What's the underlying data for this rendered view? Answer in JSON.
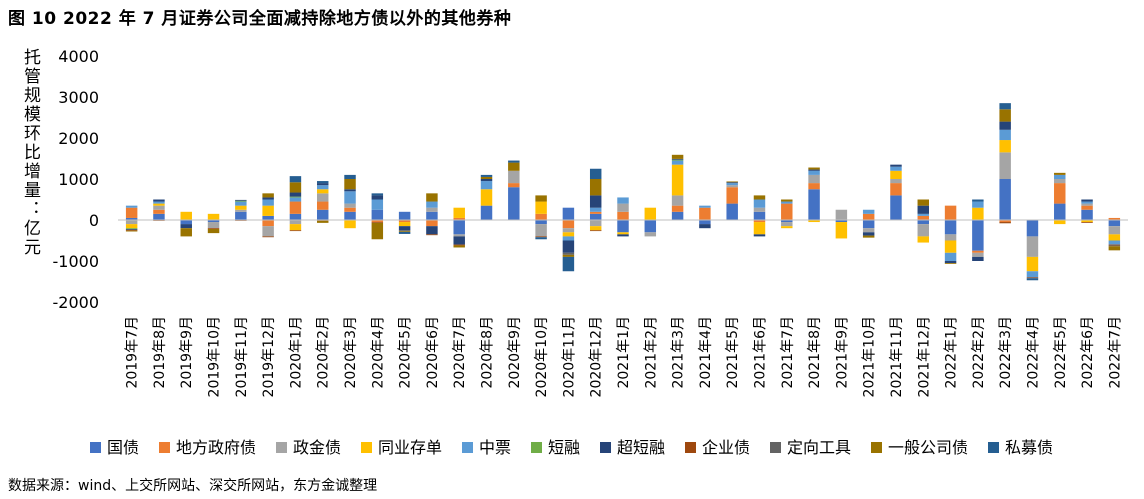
{
  "figure": {
    "title": "图 10  2022 年 7 月证券公司全面减持除地方债以外的其他券种",
    "source": "数据来源：wind、上交所网站、深交所网站，东方金诚整理"
  },
  "chart_data": {
    "type": "bar",
    "stacked": true,
    "ylabel": "托管规模环比增量：亿元",
    "ylim": [
      -2000,
      4000
    ],
    "yticks": [
      -2000,
      -1000,
      0,
      1000,
      2000,
      3000,
      4000
    ],
    "grid": false,
    "legend_position": "bottom",
    "categories": [
      "2019年7月",
      "2019年8月",
      "2019年9月",
      "2019年10月",
      "2019年11月",
      "2019年12月",
      "2020年1月",
      "2020年2月",
      "2020年3月",
      "2020年4月",
      "2020年5月",
      "2020年6月",
      "2020年7月",
      "2020年8月",
      "2020年9月",
      "2020年10月",
      "2020年11月",
      "2020年12月",
      "2021年1月",
      "2021年2月",
      "2021年3月",
      "2021年4月",
      "2021年5月",
      "2021年6月",
      "2021年7月",
      "2021年8月",
      "2021年9月",
      "2021年10月",
      "2021年11月",
      "2021年12月",
      "2022年1月",
      "2022年2月",
      "2022年3月",
      "2022年4月",
      "2022年5月",
      "2022年6月",
      "2022年7月"
    ],
    "series": [
      {
        "name": "国债",
        "color": "#4472C4",
        "values": [
          50,
          150,
          -100,
          -50,
          200,
          100,
          150,
          250,
          200,
          250,
          200,
          200,
          -350,
          350,
          800,
          -100,
          300,
          150,
          -300,
          -300,
          200,
          -100,
          400,
          200,
          -50,
          750,
          -50,
          -200,
          600,
          -100,
          -350,
          -750,
          1000,
          -400,
          400,
          250,
          -150
        ]
      },
      {
        "name": "地方政府债",
        "color": "#ED7D31",
        "values": [
          250,
          100,
          0,
          0,
          0,
          -150,
          300,
          200,
          100,
          -50,
          -50,
          -150,
          50,
          0,
          100,
          150,
          -200,
          50,
          200,
          0,
          150,
          300,
          400,
          -50,
          400,
          150,
          0,
          150,
          300,
          100,
          350,
          -50,
          -50,
          0,
          500,
          100,
          50
        ]
      },
      {
        "name": "政金债",
        "color": "#A5A5A5",
        "values": [
          -100,
          100,
          0,
          -150,
          50,
          -250,
          -100,
          200,
          100,
          0,
          0,
          100,
          -50,
          0,
          300,
          -300,
          -100,
          -150,
          200,
          -100,
          250,
          0,
          50,
          100,
          -100,
          200,
          250,
          -100,
          100,
          -300,
          -150,
          -100,
          650,
          -500,
          100,
          50,
          -200
        ]
      },
      {
        "name": "同业存单",
        "color": "#FFC000",
        "values": [
          -100,
          50,
          200,
          150,
          100,
          250,
          -150,
          100,
          -200,
          0,
          -100,
          0,
          250,
          400,
          0,
          300,
          -100,
          -100,
          -50,
          300,
          750,
          0,
          0,
          -300,
          -50,
          -50,
          -400,
          0,
          200,
          -150,
          -300,
          300,
          300,
          -350,
          -100,
          -50,
          -150
        ]
      },
      {
        "name": "中票",
        "color": "#5B9BD5",
        "values": [
          50,
          50,
          0,
          0,
          100,
          150,
          100,
          100,
          300,
          250,
          0,
          150,
          0,
          200,
          0,
          0,
          -100,
          100,
          150,
          0,
          100,
          50,
          50,
          200,
          50,
          100,
          0,
          100,
          100,
          50,
          -200,
          150,
          250,
          -150,
          100,
          50,
          -100
        ]
      },
      {
        "name": "短融",
        "color": "#70AD47",
        "values": [
          -20,
          0,
          0,
          0,
          20,
          0,
          20,
          0,
          0,
          0,
          0,
          0,
          0,
          0,
          0,
          0,
          0,
          0,
          0,
          0,
          20,
          0,
          0,
          0,
          0,
          0,
          0,
          0,
          0,
          0,
          0,
          0,
          0,
          0,
          0,
          0,
          0
        ]
      },
      {
        "name": "超短融",
        "color": "#264478",
        "values": [
          -20,
          50,
          -100,
          0,
          20,
          50,
          100,
          50,
          50,
          100,
          -100,
          -200,
          -200,
          50,
          0,
          0,
          -300,
          300,
          -50,
          0,
          20,
          -100,
          20,
          -50,
          0,
          30,
          0,
          -80,
          50,
          200,
          -50,
          -100,
          200,
          0,
          0,
          50,
          0
        ]
      },
      {
        "name": "企业债",
        "color": "#9E480E",
        "values": [
          -20,
          -20,
          0,
          -20,
          -20,
          -20,
          -20,
          -20,
          0,
          -20,
          0,
          -20,
          -20,
          0,
          0,
          -20,
          0,
          -20,
          0,
          0,
          0,
          0,
          0,
          0,
          0,
          0,
          0,
          0,
          0,
          0,
          0,
          0,
          -30,
          -20,
          0,
          -20,
          -20
        ]
      },
      {
        "name": "定向工具",
        "color": "#636363",
        "values": [
          0,
          0,
          0,
          0,
          0,
          0,
          0,
          0,
          0,
          0,
          -20,
          0,
          0,
          0,
          0,
          0,
          -50,
          0,
          0,
          0,
          0,
          0,
          0,
          0,
          0,
          0,
          0,
          0,
          0,
          0,
          0,
          0,
          0,
          0,
          0,
          0,
          -20
        ]
      },
      {
        "name": "一般公司债",
        "color": "#997300",
        "values": [
          -20,
          0,
          -200,
          -100,
          0,
          100,
          250,
          -50,
          250,
          -400,
          -20,
          200,
          -50,
          50,
          200,
          150,
          -50,
          400,
          0,
          0,
          100,
          0,
          20,
          100,
          50,
          50,
          0,
          -50,
          0,
          150,
          -20,
          0,
          300,
          0,
          50,
          0,
          -100
        ]
      },
      {
        "name": "私募债",
        "color": "#255E91",
        "values": [
          0,
          0,
          0,
          0,
          0,
          0,
          150,
          50,
          100,
          50,
          -50,
          0,
          0,
          50,
          50,
          -50,
          -350,
          250,
          0,
          0,
          0,
          0,
          0,
          0,
          0,
          0,
          0,
          0,
          0,
          0,
          0,
          50,
          150,
          -50,
          0,
          0,
          0
        ]
      }
    ]
  }
}
